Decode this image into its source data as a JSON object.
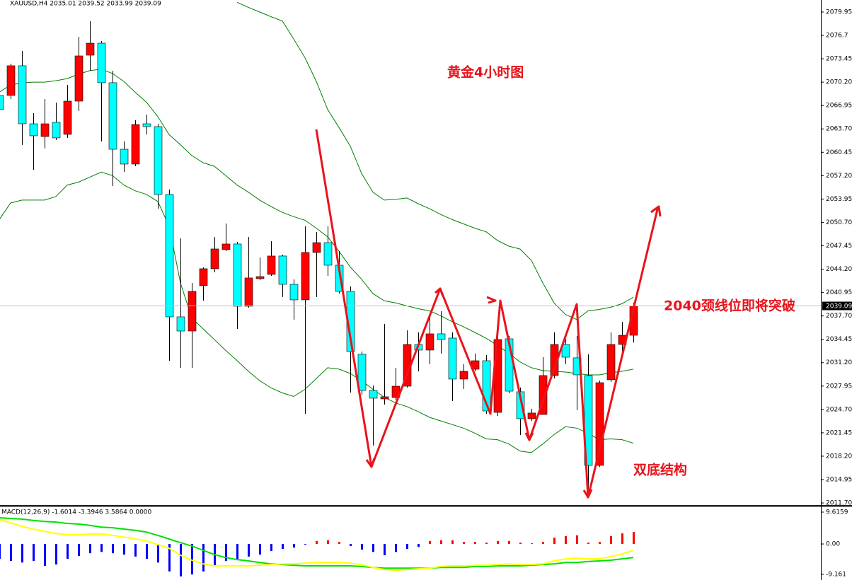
{
  "chart_data": [
    {
      "type": "candlestick",
      "title": "XAUUSD,H4  2035.01 2039.52 2033.99 2039.09",
      "open": [
        2068.35,
        2068.35,
        2072.48,
        2064.41,
        2062.64,
        2064.61,
        2062.94,
        2067.56,
        2073.95,
        2075.62,
        2070.12,
        2060.87,
        2058.81,
        2064.41,
        2064.02,
        2054.58,
        2037.57,
        2035.6,
        2041.9,
        2044.26,
        2046.91,
        2047.7,
        2039.04,
        2042.88,
        2043.47,
        2046.03,
        2042.09,
        2039.93,
        2046.52,
        2047.89,
        2044.75,
        2041.11,
        2032.36,
        2027.34,
        2026.16,
        2026.36,
        2027.93,
        2033.73,
        2032.95,
        2035.21,
        2034.62,
        2028.92,
        2030.29,
        2031.47,
        2024.29,
        2034.52,
        2027.15,
        2023.41,
        2024.0,
        2029.41,
        2033.73,
        2031.87,
        2029.41,
        2016.92,
        2028.82,
        2033.73,
        2035.01
      ],
      "high": [
        2068.84,
        2072.77,
        2074.54,
        2065.89,
        2067.85,
        2067.36,
        2069.82,
        2076.51,
        2078.67,
        2075.92,
        2071.79,
        2061.95,
        2064.9,
        2065.69,
        2064.41,
        2055.27,
        2048.48,
        2042.29,
        2044.45,
        2048.68,
        2050.55,
        2047.99,
        2048.68,
        2045.83,
        2048.09,
        2046.22,
        2042.78,
        2050.15,
        2049.37,
        2050.15,
        2046.71,
        2041.8,
        2032.75,
        2028.03,
        2036.59,
        2030.49,
        2035.7,
        2035.41,
        2037.86,
        2038.36,
        2035.41,
        2030.98,
        2032.46,
        2032.26,
        2034.91,
        2034.91,
        2027.74,
        2024.79,
        2031.96,
        2035.41,
        2034.42,
        2034.91,
        2032.36,
        2028.72,
        2035.41,
        2036.88,
        2039.52
      ],
      "low": [
        2065.89,
        2067.85,
        2061.46,
        2058.02,
        2061.0,
        2062.15,
        2062.45,
        2066.18,
        2071.79,
        2061.95,
        2055.76,
        2057.73,
        2058.51,
        2062.94,
        2052.61,
        2031.47,
        2030.49,
        2030.49,
        2039.83,
        2043.76,
        2046.71,
        2035.9,
        2038.85,
        2042.68,
        2043.27,
        2040.32,
        2037.18,
        2024.1,
        2040.32,
        2043.27,
        2040.81,
        2027.05,
        2026.75,
        2019.67,
        2025.38,
        2026.06,
        2027.74,
        2030.0,
        2030.98,
        2032.46,
        2025.87,
        2027.54,
        2030.0,
        2024.1,
        2023.8,
        2026.95,
        2021.15,
        2023.11,
        2024.0,
        2029.01,
        2030.98,
        2024.59,
        2012.79,
        2016.72,
        2028.52,
        2032.46,
        2033.99
      ],
      "close": [
        2066.38,
        2072.48,
        2064.41,
        2062.74,
        2064.41,
        2062.45,
        2067.56,
        2073.85,
        2075.62,
        2070.12,
        2060.87,
        2058.81,
        2064.31,
        2064.02,
        2054.58,
        2037.57,
        2035.6,
        2041.11,
        2044.26,
        2047.01,
        2047.7,
        2039.04,
        2042.98,
        2043.17,
        2046.03,
        2042.09,
        2039.93,
        2046.52,
        2047.89,
        2044.75,
        2041.11,
        2032.75,
        2027.34,
        2026.26,
        2026.46,
        2027.93,
        2033.73,
        2032.95,
        2035.21,
        2034.42,
        2028.92,
        2030.0,
        2031.47,
        2024.49,
        2034.42,
        2027.24,
        2023.41,
        2024.2,
        2029.41,
        2033.73,
        2031.96,
        2029.51,
        2016.92,
        2028.42,
        2033.73,
        2035.01,
        2039.09
      ],
      "up_color": "#ff0000",
      "down_color": "#00ffff",
      "series": [
        {
          "name": "upper",
          "color": "#008000",
          "values": [
            null,
            null,
            null,
            null,
            null,
            null,
            null,
            null,
            null,
            null,
            null,
            null,
            null,
            null,
            null,
            null,
            null,
            null,
            null,
            null,
            null,
            2081.3,
            2080.6,
            2079.95,
            2079.3,
            2078.7,
            2076.2,
            2073.6,
            2070.3,
            2066.4,
            2063.9,
            2061.3,
            2057.5,
            2054.9,
            2053.8,
            2053.9,
            2054.1,
            2053.3,
            2052.6,
            2051.8,
            2051.1,
            2050.5,
            2049.9,
            2049.4,
            2048.2,
            2047.4,
            2047.0,
            2045.4,
            2042.3,
            2039.5,
            2037.9,
            2037.2,
            2038.4,
            2038.6,
            2038.9,
            2039.4,
            2040.3
          ]
        },
        {
          "name": "middle",
          "color": "#008000",
          "values": [
            2068.8,
            2069.8,
            2070.1,
            2070.2,
            2070.2,
            2070.4,
            2070.7,
            2071.3,
            2071.8,
            2072.0,
            2071.4,
            2070.3,
            2068.8,
            2067.4,
            2065.4,
            2062.9,
            2061.5,
            2060.0,
            2059.0,
            2058.5,
            2057.2,
            2055.9,
            2054.9,
            2053.8,
            2052.9,
            2052.1,
            2051.5,
            2051.0,
            2049.9,
            2048.7,
            2046.7,
            2044.5,
            2042.8,
            2040.8,
            2039.8,
            2039.5,
            2039.1,
            2038.7,
            2038.4,
            2037.7,
            2036.9,
            2036.2,
            2035.4,
            2034.6,
            2033.6,
            2032.5,
            2031.3,
            2030.5,
            2030.1,
            2030.0,
            2029.9,
            2029.7,
            2029.5,
            2029.5,
            2029.8,
            2030.0,
            2030.3
          ]
        },
        {
          "name": "lower",
          "color": "#008000",
          "values": [
            2051.1,
            2053.4,
            2053.8,
            2053.8,
            2053.8,
            2054.3,
            2055.9,
            2056.3,
            2057.0,
            2057.7,
            2057.2,
            2055.9,
            2055.1,
            2054.6,
            2053.6,
            2050.2,
            2042.3,
            2037.4,
            2035.9,
            2034.4,
            2032.9,
            2031.5,
            2030.0,
            2028.7,
            2027.7,
            2027.0,
            2026.5,
            2027.5,
            2029.0,
            2030.5,
            2030.3,
            2029.7,
            2028.7,
            2027.5,
            2026.4,
            2025.6,
            2025.1,
            2024.4,
            2023.6,
            2023.1,
            2022.6,
            2022.1,
            2021.4,
            2020.6,
            2020.5,
            2019.9,
            2018.9,
            2018.7,
            2019.9,
            2021.2,
            2022.3,
            2022.1,
            2021.4,
            2020.5,
            2020.6,
            2020.5,
            2020.0
          ]
        }
      ],
      "ylim": [
        2011.41,
        2081.62
      ],
      "yticks": [
        2079.95,
        2076.7,
        {
          "value": 2073.45,
          "label": "2073.45"
        },
        {
          "value": 2070.2,
          "label": "2070.20"
        },
        2066.95,
        {
          "value": 2063.7,
          "label": "2063.70"
        },
        2060.45,
        {
          "value": 2057.2,
          "label": "2057.20"
        },
        2053.95,
        {
          "value": 2050.7,
          "label": "2050.70"
        },
        2047.45,
        {
          "value": 2044.2,
          "label": "2044.20"
        },
        2040.95,
        {
          "value": 2037.7,
          "label": "2037.70"
        },
        2034.45,
        {
          "value": 2031.2,
          "label": "2031.20"
        },
        2027.95,
        {
          "value": 2024.7,
          "label": "2024.70"
        },
        2021.45,
        {
          "value": 2018.2,
          "label": "2018.20"
        },
        2014.95,
        {
          "value": 2011.7,
          "label": "2011.70"
        }
      ],
      "last_price": 2039.09,
      "annotations": [
        "黄金4小时图",
        "2040颈线位即将突破",
        "双底结构"
      ]
    },
    {
      "type": "bar",
      "title": "MACD(12,26,9) -1.6014 -3.3946 3.5864 0.0000",
      "values": [
        -4.5,
        -5.1,
        -5.6,
        -5.1,
        -6.6,
        -6.2,
        -4.5,
        -3.6,
        -2.8,
        -2.4,
        -2.8,
        -3.2,
        -3.8,
        -4.5,
        -5.6,
        -8.3,
        -9.8,
        -9.2,
        -8.3,
        -6.6,
        -5.1,
        -4.9,
        -3.8,
        -3.2,
        -2.1,
        -1.5,
        -1.1,
        -0.2,
        0.9,
        1.1,
        0.6,
        -0.6,
        -1.7,
        -2.4,
        -3.4,
        -2.4,
        -1.5,
        -0.9,
        0.9,
        1.1,
        1.1,
        0.6,
        0.6,
        0.4,
        0.9,
        0.9,
        0.4,
        0.2,
        0.6,
        1.9,
        2.4,
        2.6,
        0.4,
        0.6,
        2.4,
        3.2,
        3.6
      ],
      "up_color": "#ff0000",
      "down_color": "#0000ff",
      "series": [
        {
          "name": "signal",
          "color": "#00e000",
          "values": [
            7.9,
            7.7,
            7.5,
            7.1,
            6.8,
            6.6,
            6.2,
            6.0,
            5.6,
            5.1,
            4.9,
            4.5,
            4.1,
            3.6,
            2.6,
            1.5,
            0.4,
            -0.6,
            -1.9,
            -3.2,
            -4.1,
            -4.7,
            -5.1,
            -5.6,
            -6.0,
            -6.2,
            -6.4,
            -6.6,
            -6.6,
            -6.6,
            -6.6,
            -6.6,
            -6.8,
            -7.1,
            -7.3,
            -7.3,
            -7.3,
            -7.3,
            -7.3,
            -7.1,
            -7.1,
            -7.1,
            -6.8,
            -6.8,
            -6.6,
            -6.6,
            -6.6,
            -6.4,
            -6.2,
            -6.0,
            -5.6,
            -5.6,
            -5.3,
            -5.1,
            -4.9,
            -4.5,
            -4.1
          ]
        },
        {
          "name": "macd",
          "color": "#ffff00",
          "values": [
            7.3,
            6.4,
            5.3,
            4.5,
            3.8,
            3.2,
            2.8,
            2.8,
            3.0,
            3.0,
            2.6,
            2.1,
            1.5,
            0.9,
            -0.2,
            -1.3,
            -3.4,
            -4.9,
            -6.0,
            -6.6,
            -6.6,
            -6.6,
            -6.6,
            -6.4,
            -6.2,
            -6.0,
            -6.0,
            -5.8,
            -5.6,
            -5.6,
            -5.6,
            -5.8,
            -6.2,
            -7.1,
            -7.7,
            -7.9,
            -7.7,
            -7.5,
            -7.3,
            -6.8,
            -6.6,
            -6.6,
            -6.4,
            -6.4,
            -6.2,
            -6.0,
            -6.2,
            -6.2,
            -6.0,
            -5.1,
            -4.5,
            -4.3,
            -4.5,
            -4.5,
            -3.8,
            -3.0,
            -1.9
          ]
        }
      ],
      "ylim": [
        -10.87,
        11.32
      ],
      "yticks": [
        9.6159,
        {
          "value": 0,
          "label": "0.00"
        },
        -9.161
      ]
    }
  ]
}
